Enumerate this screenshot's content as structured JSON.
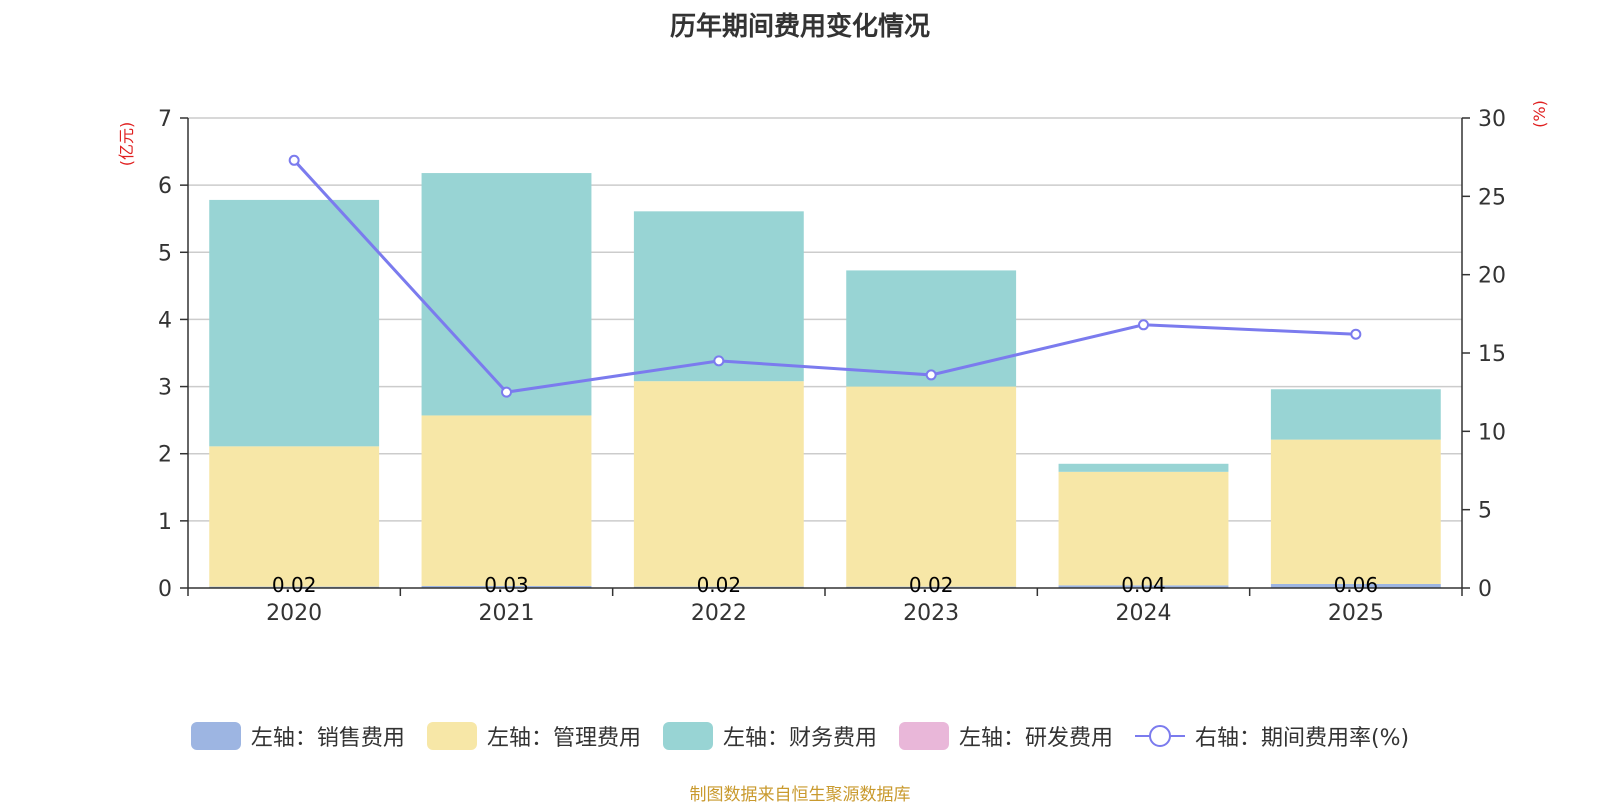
{
  "chart_data": {
    "type": "bar",
    "stacked": true,
    "title": "历年期间费用变化情况",
    "categories": [
      "2020",
      "2021",
      "2022",
      "2023",
      "2024",
      "2025"
    ],
    "y_left": {
      "unit": "(亿元)",
      "min": 0,
      "max": 7,
      "ticks": [
        "0",
        "1",
        "2",
        "3",
        "4",
        "5",
        "6",
        "7"
      ]
    },
    "y_right": {
      "unit": "(%)",
      "min": 0,
      "max": 30,
      "ticks": [
        "0",
        "5",
        "10",
        "15",
        "20",
        "25",
        "30"
      ]
    },
    "series": [
      {
        "name": "左轴：销售费用",
        "color": "#9db5e2",
        "values": [
          0.02,
          0.03,
          0.02,
          0.02,
          0.04,
          0.06
        ],
        "data_labels": [
          "0.02",
          "0.03",
          "0.02",
          "0.02",
          "0.04",
          "0.06"
        ]
      },
      {
        "name": "左轴：管理费用",
        "color": "#f7e7a7",
        "values": [
          2.09,
          2.54,
          3.06,
          2.98,
          1.69,
          2.15
        ]
      },
      {
        "name": "左轴：财务费用",
        "color": "#98d4d4",
        "values": [
          3.67,
          3.61,
          2.53,
          1.73,
          0.12,
          0.75
        ]
      },
      {
        "name": "左轴：研发费用",
        "color": "#e9b7d9",
        "values": [
          0,
          0,
          0,
          0,
          0,
          0
        ]
      }
    ],
    "line_series": {
      "name": "右轴：期间费用率(%)",
      "color": "#7b7bee",
      "axis": "right",
      "values": [
        27.3,
        12.5,
        14.5,
        13.6,
        16.8,
        16.2
      ]
    },
    "legend_position": "bottom",
    "grid": true,
    "source": "制图数据来自恒生聚源数据库"
  }
}
